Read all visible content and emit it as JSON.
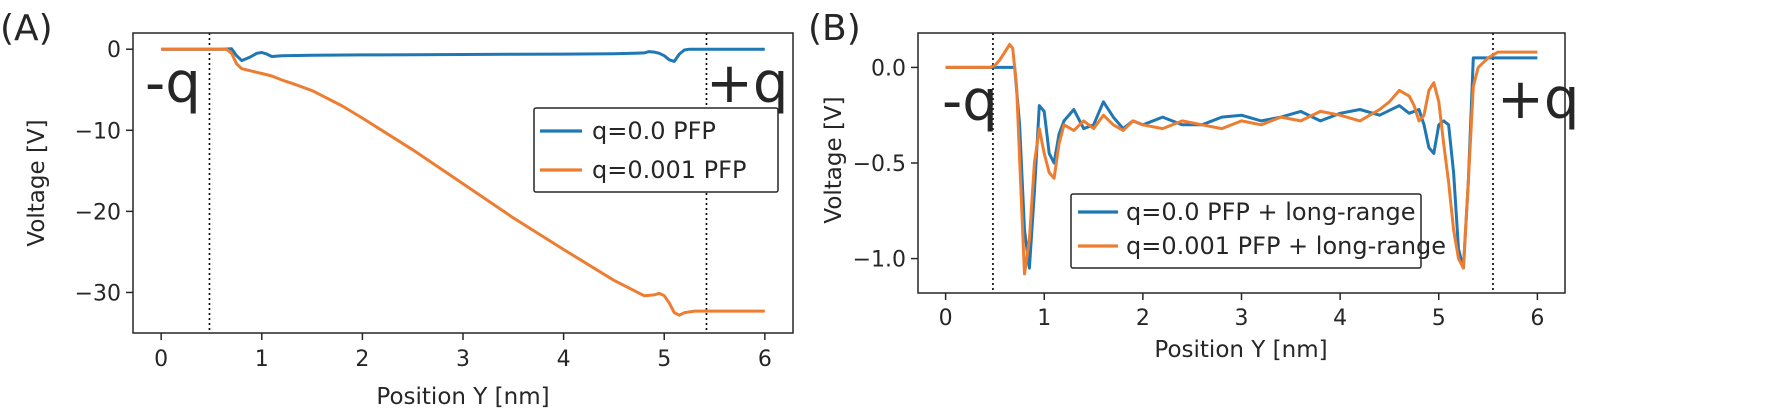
{
  "colors": {
    "blue": "#1f77b4",
    "orange": "#ed7d31",
    "axis": "#262626",
    "marker_line": "#000000"
  },
  "chart_data": [
    {
      "panel": "(A)",
      "type": "line",
      "xlabel": "Position Y [nm]",
      "ylabel": "Voltage [V]",
      "xlim": [
        -0.28,
        6.28
      ],
      "ylim": [
        -35,
        2
      ],
      "xticks": [
        0,
        1,
        2,
        3,
        4,
        5,
        6
      ],
      "yticks": [
        0,
        -10,
        -20,
        -30
      ],
      "ytick_labels": [
        "0",
        "−10",
        "−20",
        "−30"
      ],
      "grid": false,
      "legend_position": "center-right",
      "charge_labels": {
        "left": "-q",
        "right": "+q"
      },
      "vlines": [
        0.48,
        5.42
      ],
      "series": [
        {
          "name": "q=0.0 PFP",
          "color": "#1f77b4",
          "x": [
            0,
            0.3,
            0.6,
            0.7,
            0.75,
            0.8,
            0.88,
            0.95,
            1.0,
            1.05,
            1.1,
            1.2,
            1.5,
            2.0,
            2.5,
            3.0,
            3.5,
            4.0,
            4.5,
            4.7,
            4.8,
            4.85,
            4.9,
            4.95,
            5.0,
            5.05,
            5.1,
            5.15,
            5.2,
            5.25,
            5.3,
            5.4,
            5.6,
            6.0
          ],
          "values": [
            0,
            0,
            0,
            0.05,
            -0.8,
            -1.4,
            -1.0,
            -0.5,
            -0.4,
            -0.6,
            -0.9,
            -0.8,
            -0.75,
            -0.7,
            -0.68,
            -0.65,
            -0.62,
            -0.6,
            -0.55,
            -0.5,
            -0.45,
            -0.3,
            -0.35,
            -0.5,
            -0.8,
            -1.3,
            -1.5,
            -0.6,
            -0.1,
            0,
            0,
            0,
            0,
            0
          ]
        },
        {
          "name": "q=0.001 PFP",
          "color": "#ed7d31",
          "x": [
            0,
            0.5,
            0.65,
            0.7,
            0.75,
            0.8,
            0.9,
            1.0,
            1.1,
            1.2,
            1.3,
            1.5,
            1.8,
            2.0,
            2.5,
            3.0,
            3.5,
            4.0,
            4.5,
            4.8,
            4.9,
            4.95,
            5.0,
            5.05,
            5.1,
            5.15,
            5.2,
            5.3,
            5.5,
            6.0
          ],
          "values": [
            0,
            0,
            0,
            -0.5,
            -1.8,
            -2.4,
            -2.7,
            -3.0,
            -3.3,
            -3.8,
            -4.2,
            -5.1,
            -7.0,
            -8.5,
            -12.4,
            -16.6,
            -20.8,
            -24.7,
            -28.5,
            -30.4,
            -30.3,
            -30.1,
            -30.4,
            -31.3,
            -32.5,
            -32.8,
            -32.5,
            -32.3,
            -32.3,
            -32.3
          ]
        }
      ]
    },
    {
      "panel": "(B)",
      "type": "line",
      "xlabel": "Position Y [nm]",
      "ylabel": "Voltage [V]",
      "xlim": [
        -0.28,
        6.28
      ],
      "ylim": [
        -1.18,
        0.18
      ],
      "xticks": [
        0,
        1,
        2,
        3,
        4,
        5,
        6
      ],
      "yticks": [
        0.0,
        -0.5,
        -1.0
      ],
      "ytick_labels": [
        "0.0",
        "−0.5",
        "−1.0"
      ],
      "grid": false,
      "legend_position": "lower-center",
      "charge_labels": {
        "left": "-q",
        "right": "+q"
      },
      "vlines": [
        0.48,
        5.55
      ],
      "series": [
        {
          "name": "q=0.0 PFP + long-range",
          "color": "#1f77b4",
          "x": [
            0,
            0.5,
            0.6,
            0.65,
            0.7,
            0.75,
            0.8,
            0.85,
            0.9,
            0.95,
            1.0,
            1.05,
            1.1,
            1.15,
            1.2,
            1.3,
            1.4,
            1.5,
            1.6,
            1.7,
            1.8,
            1.9,
            2.0,
            2.2,
            2.4,
            2.6,
            2.8,
            3.0,
            3.2,
            3.4,
            3.6,
            3.8,
            4.0,
            4.2,
            4.4,
            4.6,
            4.7,
            4.8,
            4.85,
            4.9,
            4.95,
            5.0,
            5.05,
            5.1,
            5.15,
            5.2,
            5.25,
            5.3,
            5.35,
            5.4,
            5.5,
            6.0
          ],
          "values": [
            0,
            0,
            0,
            0,
            0,
            -0.3,
            -0.85,
            -1.05,
            -0.65,
            -0.2,
            -0.23,
            -0.45,
            -0.5,
            -0.35,
            -0.28,
            -0.22,
            -0.32,
            -0.3,
            -0.18,
            -0.26,
            -0.32,
            -0.28,
            -0.3,
            -0.26,
            -0.3,
            -0.3,
            -0.26,
            -0.25,
            -0.28,
            -0.26,
            -0.23,
            -0.28,
            -0.24,
            -0.22,
            -0.25,
            -0.2,
            -0.24,
            -0.22,
            -0.3,
            -0.42,
            -0.45,
            -0.3,
            -0.28,
            -0.3,
            -0.55,
            -0.95,
            -1.05,
            -0.6,
            0.05,
            0.05,
            0.05,
            0.05
          ]
        },
        {
          "name": "q=0.001 PFP + long-range",
          "color": "#ed7d31",
          "x": [
            0,
            0.45,
            0.5,
            0.55,
            0.6,
            0.65,
            0.68,
            0.72,
            0.76,
            0.8,
            0.85,
            0.9,
            0.95,
            1.0,
            1.05,
            1.1,
            1.15,
            1.2,
            1.3,
            1.4,
            1.5,
            1.6,
            1.7,
            1.8,
            1.9,
            2.0,
            2.2,
            2.4,
            2.6,
            2.8,
            3.0,
            3.2,
            3.4,
            3.6,
            3.8,
            4.0,
            4.2,
            4.4,
            4.5,
            4.6,
            4.7,
            4.75,
            4.8,
            4.85,
            4.9,
            4.95,
            5.0,
            5.05,
            5.1,
            5.15,
            5.2,
            5.25,
            5.3,
            5.35,
            5.4,
            5.5,
            5.6,
            6.0
          ],
          "values": [
            0,
            0,
            0.01,
            0.04,
            0.08,
            0.12,
            0.1,
            -0.1,
            -0.6,
            -1.08,
            -0.9,
            -0.5,
            -0.32,
            -0.45,
            -0.55,
            -0.58,
            -0.4,
            -0.3,
            -0.33,
            -0.28,
            -0.32,
            -0.25,
            -0.3,
            -0.33,
            -0.28,
            -0.3,
            -0.32,
            -0.28,
            -0.3,
            -0.32,
            -0.28,
            -0.3,
            -0.26,
            -0.28,
            -0.23,
            -0.25,
            -0.28,
            -0.22,
            -0.18,
            -0.12,
            -0.15,
            -0.2,
            -0.28,
            -0.25,
            -0.12,
            -0.08,
            -0.18,
            -0.4,
            -0.6,
            -0.85,
            -1.0,
            -1.05,
            -0.6,
            -0.1,
            0.0,
            0.05,
            0.08,
            0.08
          ]
        }
      ]
    }
  ]
}
